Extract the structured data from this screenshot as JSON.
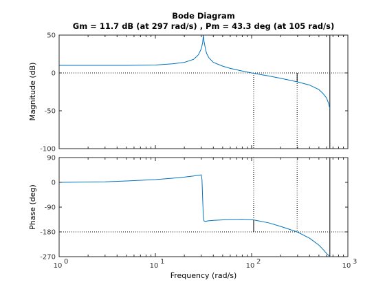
{
  "chart_data": {
    "type": "line",
    "title": "Bode Diagram",
    "subtitle": "Gm = 11.7 dB (at 297 rad/s) ,  Pm = 43.3 deg (at 105 rad/s)",
    "xlabel": "Frequency  (rad/s)",
    "xscale": "log",
    "xlim": [
      1,
      1000
    ],
    "x_ticks": [
      {
        "base": "10",
        "exp": "0"
      },
      {
        "base": "10",
        "exp": "1"
      },
      {
        "base": "10",
        "exp": "2"
      },
      {
        "base": "10",
        "exp": "3"
      }
    ],
    "line_color": "#0072bd",
    "margins": {
      "gain_margin_db": 11.7,
      "gain_crossover_freq": 297,
      "phase_margin_deg": 43.3,
      "phase_crossover_freq": 105,
      "vertical_asymptote_freq": 650
    },
    "magnitude": {
      "ylabel": "Magnitude (dB)",
      "ylim": [
        -100,
        50
      ],
      "y_ticks": [
        "50",
        "0",
        "-50",
        "-100"
      ],
      "y_tick_values": [
        50,
        0,
        -50,
        -100
      ],
      "reference_line": 0,
      "x": [
        1,
        3,
        5,
        10,
        15,
        20,
        25,
        28,
        30,
        31,
        31.5,
        32,
        33,
        34,
        36,
        40,
        50,
        60,
        80,
        100,
        105,
        150,
        200,
        297,
        400,
        500,
        550,
        600,
        630,
        650
      ],
      "y": [
        10,
        10,
        10,
        10.5,
        12,
        14,
        18,
        24,
        32,
        40,
        50,
        42,
        33,
        26,
        20,
        14,
        9,
        6,
        2.5,
        0,
        -0.5,
        -4,
        -7,
        -11.7,
        -16,
        -22,
        -27,
        -33,
        -40,
        -47
      ]
    },
    "phase": {
      "ylabel": "Phase (deg)",
      "ylim": [
        -270,
        90
      ],
      "y_ticks": [
        "90",
        "0",
        "-90",
        "-180",
        "-270"
      ],
      "y_tick_values": [
        90,
        0,
        -90,
        -180,
        -270
      ],
      "reference_line": -180,
      "x": [
        1,
        3,
        5,
        10,
        15,
        20,
        25,
        28,
        30,
        30.5,
        31,
        31.5,
        32,
        33,
        35,
        40,
        60,
        80,
        105,
        150,
        200,
        297,
        400,
        500,
        550,
        600,
        650
      ],
      "y": [
        0,
        2,
        5,
        10,
        15,
        19,
        23,
        26,
        27,
        10,
        -60,
        -125,
        -140,
        -142,
        -140,
        -138,
        -135,
        -134,
        -136.7,
        -147,
        -160,
        -180,
        -203,
        -228,
        -243,
        -258,
        -270
      ]
    }
  }
}
